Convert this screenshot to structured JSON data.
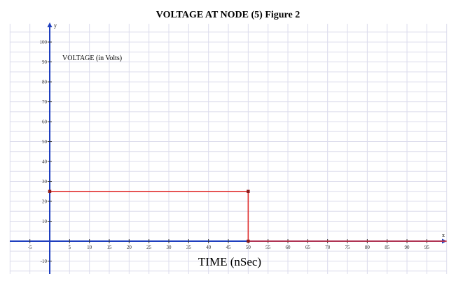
{
  "chart_data": {
    "type": "line",
    "title": "VOLTAGE AT  NODE (5)  Figure 2",
    "xlabel": "TIME (nSec)",
    "ylabel": "VOLTAGE  (in Volts)",
    "x_axis_letter": "x",
    "y_axis_letter": "y",
    "xlim": [
      -5,
      100
    ],
    "ylim": [
      -15,
      105
    ],
    "x_ticks": [
      -5,
      5,
      10,
      15,
      20,
      25,
      30,
      35,
      40,
      45,
      50,
      55,
      60,
      65,
      70,
      75,
      80,
      85,
      90,
      95
    ],
    "y_ticks": [
      -10,
      10,
      20,
      30,
      40,
      50,
      60,
      70,
      80,
      90,
      100
    ],
    "grid": true,
    "colors": {
      "series": "#e03030",
      "axis": "#1f3fbf",
      "grid": "#dcdcec",
      "marker": "#8b1a1a"
    },
    "series": [
      {
        "x": [
          0,
          50,
          50,
          100
        ],
        "y": [
          25,
          25,
          0,
          0
        ]
      }
    ],
    "markers": [
      {
        "x": 0,
        "y": 25
      },
      {
        "x": 50,
        "y": 25
      },
      {
        "x": 50,
        "y": 0
      }
    ]
  }
}
